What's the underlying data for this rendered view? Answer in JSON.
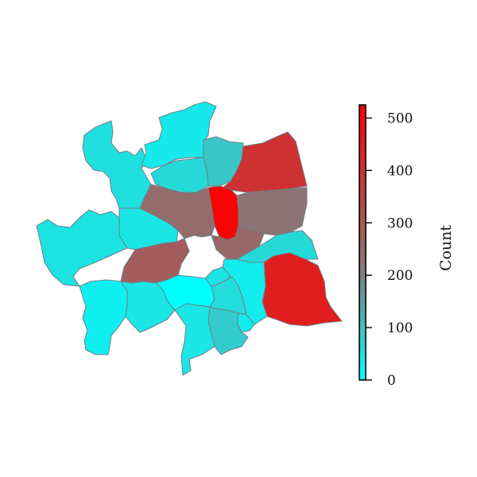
{
  "colors": {
    "low": "#00ffff",
    "mid": "#808080",
    "high": "#ff0000"
  },
  "colorbar": {
    "label": "Count",
    "min": 0,
    "max": 525,
    "ticks": [
      {
        "value": 0,
        "label": "0"
      },
      {
        "value": 100,
        "label": "100"
      },
      {
        "value": 200,
        "label": "200"
      },
      {
        "value": 300,
        "label": "300"
      },
      {
        "value": 400,
        "label": "400"
      },
      {
        "value": 500,
        "label": "500"
      }
    ]
  },
  "regions": [
    {
      "id": "far-west",
      "count": 45
    },
    {
      "id": "north-west",
      "count": 50
    },
    {
      "id": "north-top",
      "count": 35
    },
    {
      "id": "north-center",
      "count": 90
    },
    {
      "id": "north-east-upper",
      "count": 400
    },
    {
      "id": "upper-mid-left",
      "count": 60
    },
    {
      "id": "central-inner",
      "count": 30
    },
    {
      "id": "center-left",
      "count": 250
    },
    {
      "id": "center-red",
      "count": 520
    },
    {
      "id": "center-right",
      "count": 230
    },
    {
      "id": "mid-left",
      "count": 40
    },
    {
      "id": "center-south",
      "count": 260
    },
    {
      "id": "left-lower",
      "count": 290
    },
    {
      "id": "east-lower",
      "count": 60
    },
    {
      "id": "south-east",
      "count": 450
    },
    {
      "id": "south-west",
      "count": 25
    },
    {
      "id": "south-center-left",
      "count": 40
    },
    {
      "id": "south-cyan",
      "count": 0
    },
    {
      "id": "south-center",
      "count": 40
    },
    {
      "id": "south-mid",
      "count": 55
    },
    {
      "id": "south-mid-right",
      "count": 40
    },
    {
      "id": "south-east-small",
      "count": 30
    },
    {
      "id": "south-bottom",
      "count": 80
    }
  ]
}
